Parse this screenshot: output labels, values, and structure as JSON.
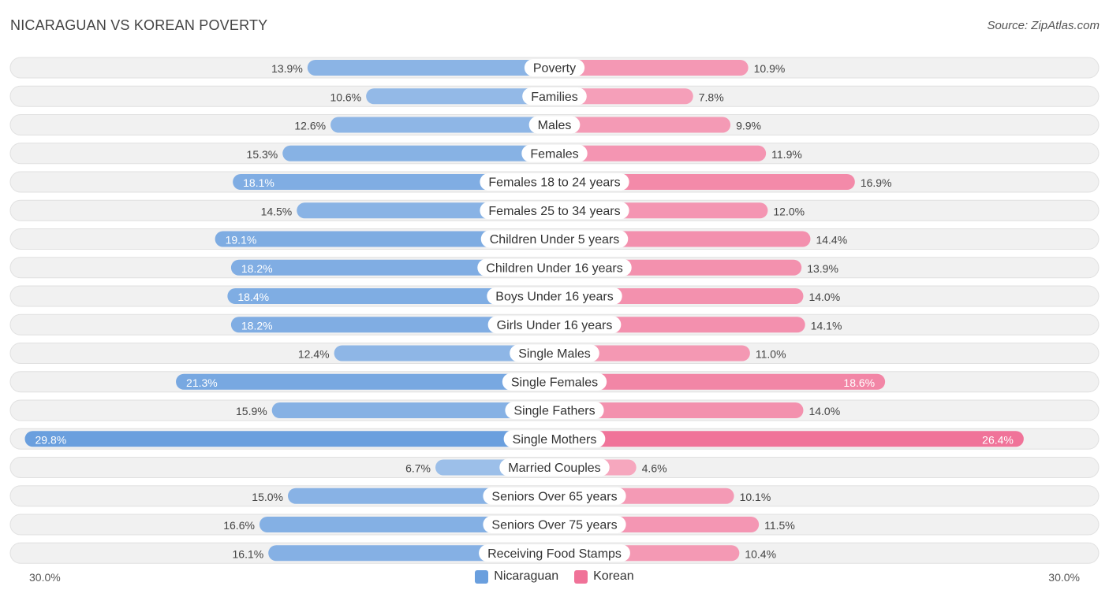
{
  "header": {
    "title": "NICARAGUAN VS KOREAN POVERTY",
    "source": "Source: ZipAtlas.com"
  },
  "colors": {
    "nicaraguan": "#6a9fde",
    "korean": "#f07298"
  },
  "axis": {
    "left_label": "30.0%",
    "right_label": "30.0%"
  },
  "legend": {
    "nicaraguan": "Nicaraguan",
    "korean": "Korean"
  },
  "chart_data": {
    "type": "bar",
    "orientation": "diverging-horizontal",
    "title": "NICARAGUAN VS KOREAN POVERTY",
    "xlim": [
      0,
      30
    ],
    "unit": "%",
    "categories": [
      "Poverty",
      "Families",
      "Males",
      "Females",
      "Females 18 to 24 years",
      "Females 25 to 34 years",
      "Children Under 5 years",
      "Children Under 16 years",
      "Boys Under 16 years",
      "Girls Under 16 years",
      "Single Males",
      "Single Females",
      "Single Fathers",
      "Single Mothers",
      "Married Couples",
      "Seniors Over 65 years",
      "Seniors Over 75 years",
      "Receiving Food Stamps"
    ],
    "series": [
      {
        "name": "Nicaraguan",
        "values": [
          13.9,
          10.6,
          12.6,
          15.3,
          18.1,
          14.5,
          19.1,
          18.2,
          18.4,
          18.2,
          12.4,
          21.3,
          15.9,
          29.8,
          6.7,
          15.0,
          16.6,
          16.1
        ],
        "labels": [
          "13.9%",
          "10.6%",
          "12.6%",
          "15.3%",
          "18.1%",
          "14.5%",
          "19.1%",
          "18.2%",
          "18.4%",
          "18.2%",
          "12.4%",
          "21.3%",
          "15.9%",
          "29.8%",
          "6.7%",
          "15.0%",
          "16.6%",
          "16.1%"
        ]
      },
      {
        "name": "Korean",
        "values": [
          10.9,
          7.8,
          9.9,
          11.9,
          16.9,
          12.0,
          14.4,
          13.9,
          14.0,
          14.1,
          11.0,
          18.6,
          14.0,
          26.4,
          4.6,
          10.1,
          11.5,
          10.4
        ],
        "labels": [
          "10.9%",
          "7.8%",
          "9.9%",
          "11.9%",
          "16.9%",
          "12.0%",
          "14.4%",
          "13.9%",
          "14.0%",
          "14.1%",
          "11.0%",
          "18.6%",
          "14.0%",
          "26.4%",
          "4.6%",
          "10.1%",
          "11.5%",
          "10.4%"
        ]
      }
    ]
  }
}
